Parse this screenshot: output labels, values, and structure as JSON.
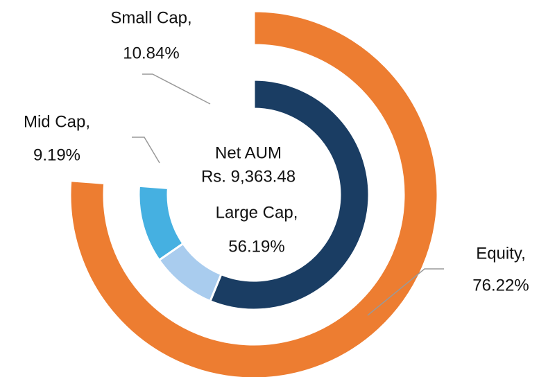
{
  "chart_data": {
    "type": "donut",
    "annotations": [
      "Net AUM",
      "Rs. 9,363.48"
    ],
    "rings": [
      {
        "categories": [
          "Equity,"
        ],
        "values": [
          76.22
        ],
        "value_labels": [
          "76.22%"
        ],
        "colors": [
          "#ED7D31"
        ]
      },
      {
        "categories": [
          "Large Cap,",
          "Mid Cap,",
          "Small Cap,"
        ],
        "values": [
          56.19,
          9.19,
          10.84
        ],
        "value_labels": [
          "56.19%",
          "9.19%",
          "10.84%"
        ],
        "colors": [
          "#1A3D63",
          "#A9CCEE",
          "#45B0E1"
        ]
      }
    ]
  }
}
